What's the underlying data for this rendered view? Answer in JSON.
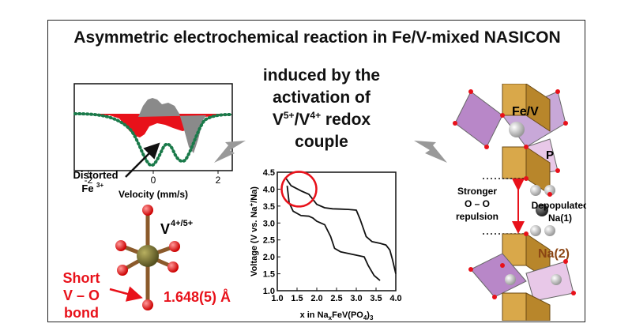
{
  "title": "Asymmetric electrochemical reaction in Fe/V-mixed NASICON",
  "subtitle": {
    "line1": "induced by the",
    "line2": "activation of",
    "redox_v1": "V",
    "redox_sup1": "5+",
    "redox_mid": "/V",
    "redox_sup2": "4+",
    "redox_tail": " redox couple"
  },
  "mossbauer": {
    "annotation_main": "Distorted",
    "annotation_fe": "Fe",
    "annotation_sup": "3+",
    "xlabel": "Velocity (mm/s)",
    "xticks": [
      "-2",
      "0",
      "2"
    ],
    "colors": {
      "red": "#e8111a",
      "gray": "#8a8a8a",
      "green": "#1a7a4a"
    }
  },
  "vo6": {
    "label_v": "V",
    "label_sup": "4+/5+",
    "note_line1": "Short",
    "note_line2": "V – O",
    "note_line3": "bond",
    "bond_length": "1.648(5) Å"
  },
  "structure": {
    "fev_label": "Fe/V",
    "p_label": "P",
    "repulsion_line1": "Stronger",
    "repulsion_line2": "O – O",
    "repulsion_line3": "repulsion",
    "depop_line1": "Depopulated",
    "depop_line2": "Na(1)",
    "na2_label": "Na(2)"
  },
  "chart_data": {
    "type": "line",
    "ylabel_part1": "Voltage (V vs. Na",
    "ylabel_sup": "+",
    "ylabel_part2": "/Na)",
    "xlabel_part1": "x in Na",
    "xlabel_sub1": "x",
    "xlabel_part2": "FeV(PO",
    "xlabel_sub2": "4",
    "xlabel_part3": ")",
    "xlabel_sub3": "3",
    "xlim": [
      1.0,
      4.0
    ],
    "ylim": [
      1.0,
      4.5
    ],
    "xticks": [
      "1.0",
      "1.5",
      "2.0",
      "2.5",
      "3.0",
      "3.5",
      "4.0"
    ],
    "yticks": [
      "1.0",
      "1.5",
      "2.0",
      "2.5",
      "3.0",
      "3.5",
      "4.0",
      "4.5"
    ],
    "series": [
      {
        "x": [
          1.2,
          1.35,
          1.6,
          1.8,
          2.0,
          2.2,
          2.4,
          2.6,
          2.8,
          3.0,
          3.1,
          3.25,
          3.4,
          3.6,
          3.75,
          3.85,
          3.92,
          4.0
        ],
        "y": [
          4.35,
          4.1,
          3.95,
          3.85,
          3.55,
          3.45,
          3.42,
          3.41,
          3.4,
          3.38,
          3.1,
          2.6,
          2.45,
          2.4,
          2.35,
          2.2,
          1.9,
          1.5
        ]
      },
      {
        "x": [
          3.6,
          3.45,
          3.3,
          3.2,
          3.0,
          2.8,
          2.6,
          2.45,
          2.35,
          2.2,
          2.0,
          1.9,
          1.8,
          1.6,
          1.4,
          1.3,
          1.25
        ],
        "y": [
          1.3,
          1.45,
          1.75,
          2.0,
          2.05,
          2.1,
          2.15,
          2.25,
          2.6,
          2.95,
          3.05,
          3.15,
          3.2,
          3.22,
          3.35,
          3.6,
          4.1
        ]
      }
    ],
    "highlight_circle_center": [
      1.55,
      4.0
    ],
    "colors": {
      "line": "#111111",
      "circle": "#e8111a"
    }
  }
}
